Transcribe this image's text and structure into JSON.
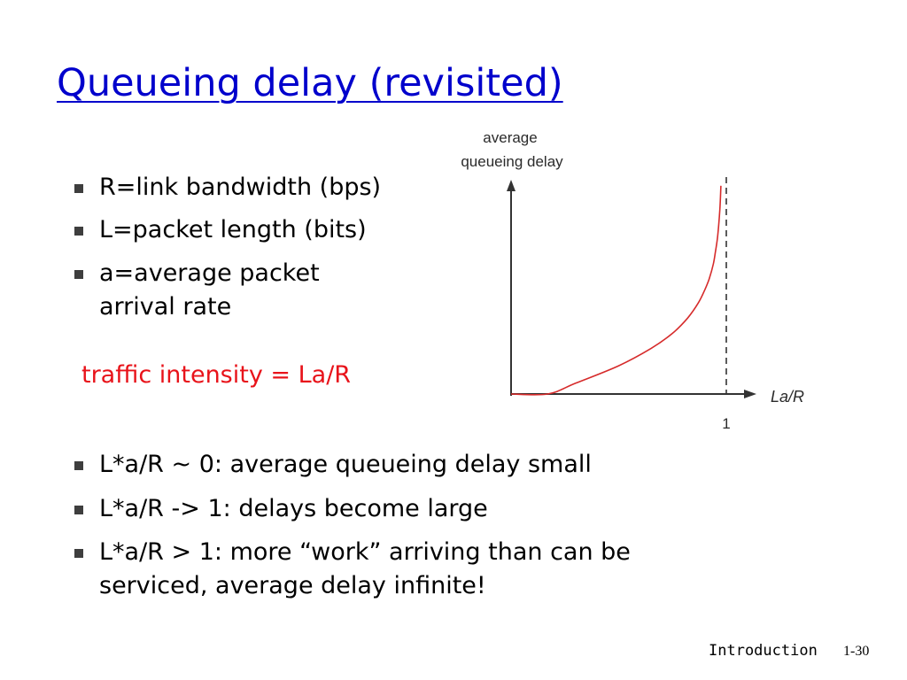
{
  "slide": {
    "title": "Queueing delay (revisited)",
    "colors": {
      "title": "#0000cc",
      "callout": "#e8131a",
      "curve": "#d62b2b",
      "bullet_marker": "#3e3e3e"
    },
    "definitions": [
      {
        "text": "R=link bandwidth (bps)"
      },
      {
        "text": "L=packet length (bits)"
      },
      {
        "lines": [
          "a=average packet",
          "arrival rate"
        ]
      }
    ],
    "callout": "traffic intensity = La/R",
    "observations": [
      {
        "text": "L*a/R ~ 0: average queueing delay small"
      },
      {
        "text": "L*a/R -> 1: delays become large"
      },
      {
        "lines": [
          "L*a/R > 1: more “work” arriving than can be",
          "serviced, average delay infinite!"
        ]
      }
    ]
  },
  "footer": {
    "label": "Introduction",
    "page": "1-30"
  },
  "chart_data": {
    "type": "line",
    "ylabel": [
      "average",
      "queueing delay"
    ],
    "xlabel": "La/R",
    "x_ticks": [
      "1"
    ],
    "xlim": [
      0,
      1.15
    ],
    "asymptote": {
      "x": 1,
      "style": "dashed"
    },
    "series": [
      {
        "x": [
          0,
          0.17,
          0.3,
          0.5,
          0.65,
          0.75,
          0.82,
          0.87,
          0.9,
          0.92,
          0.94,
          0.95,
          0.96,
          0.97,
          0.975
        ],
        "y": [
          0,
          0,
          0.05,
          0.13,
          0.21,
          0.28,
          0.35,
          0.42,
          0.48,
          0.53,
          0.6,
          0.66,
          0.73,
          0.85,
          0.96
        ]
      }
    ]
  }
}
